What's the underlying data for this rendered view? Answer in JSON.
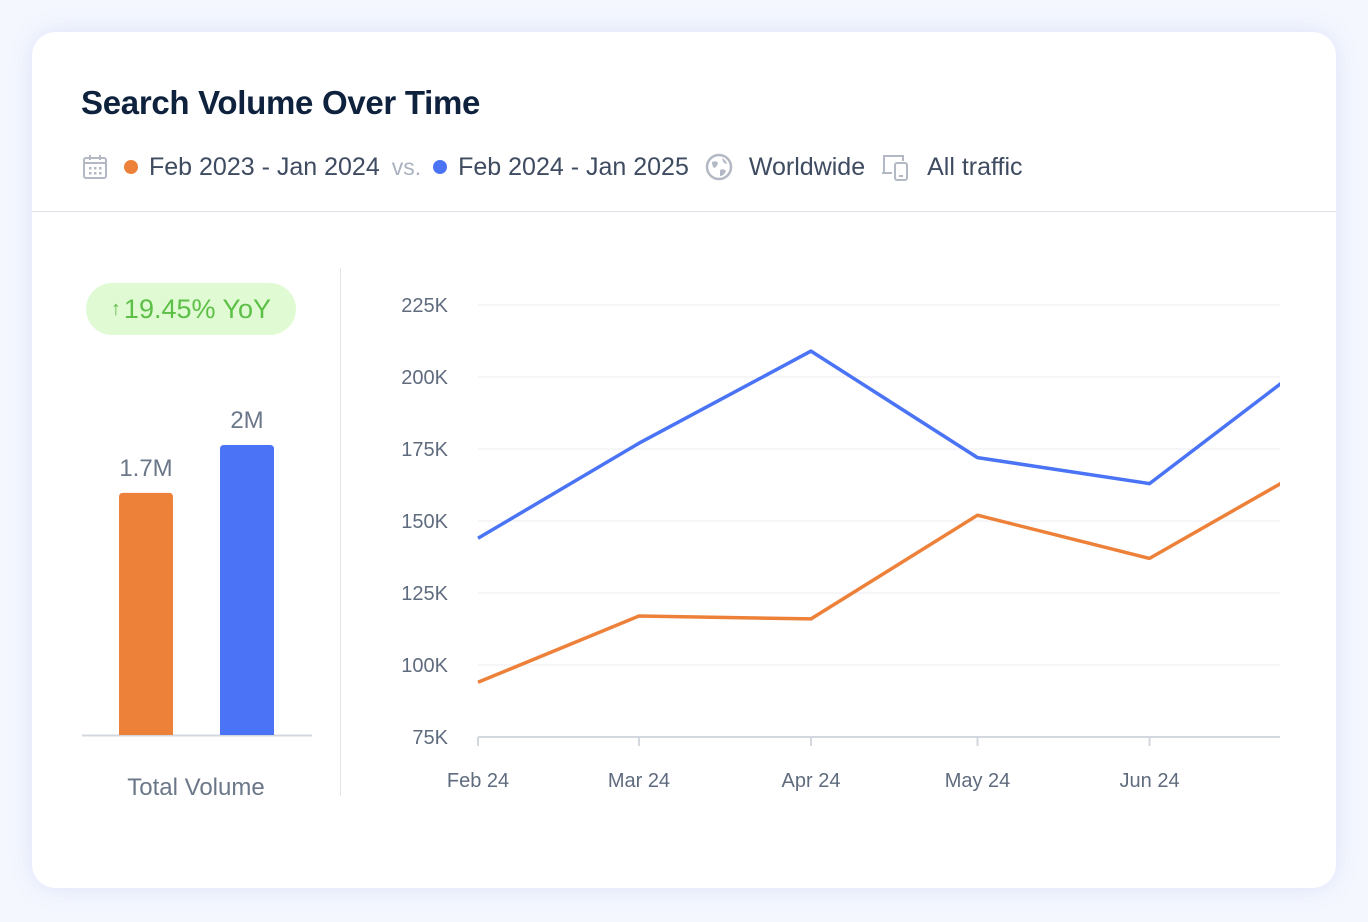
{
  "card": {
    "title": "Search Volume Over Time",
    "meta": {
      "calendar_icon": "calendar-icon",
      "period_previous": "Feb 2023 - Jan 2024",
      "vs_label": "vs.",
      "period_current": "Feb 2024 - Jan 2025",
      "location_icon": "globe-icon",
      "location": "Worldwide",
      "traffic_icon": "devices-icon",
      "traffic": "All traffic"
    }
  },
  "colors": {
    "previous": "#ed8139",
    "current": "#4a74f5",
    "badge_bg": "#e0fbd4",
    "badge_text": "#5cbf46"
  },
  "chart_data": [
    {
      "type": "bar",
      "badge": {
        "icon": "arrow-up-icon",
        "arrow": "↑",
        "text": "19.45% YoY"
      },
      "categories": [
        "Feb 2023 - Jan 2024",
        "Feb 2024 - Jan 2025"
      ],
      "values": [
        1.67,
        2.0
      ],
      "value_labels": [
        "1.7M",
        "2M"
      ],
      "unit": "M",
      "xlabel": "Total Volume"
    },
    {
      "type": "line",
      "x": [
        "2024-02-01",
        "2024-03-01",
        "2024-04-01",
        "2024-05-01",
        "2024-06-01",
        "2024-07-01"
      ],
      "xtick_labels": [
        "Feb 24",
        "Mar 24",
        "Apr 24",
        "May 24",
        "Jun 24"
      ],
      "ylim": [
        75000,
        225000
      ],
      "yticks": [
        75000,
        100000,
        125000,
        150000,
        175000,
        200000,
        225000
      ],
      "ytick_labels": [
        "75K",
        "100K",
        "125K",
        "150K",
        "175K",
        "200K",
        "225K"
      ],
      "grid": true,
      "series": [
        {
          "key": "current",
          "values": [
            144000,
            177000,
            209000,
            172000,
            163000,
            207000
          ]
        },
        {
          "key": "previous",
          "values": [
            94000,
            117000,
            116000,
            152000,
            137000,
            170000
          ]
        }
      ]
    }
  ]
}
